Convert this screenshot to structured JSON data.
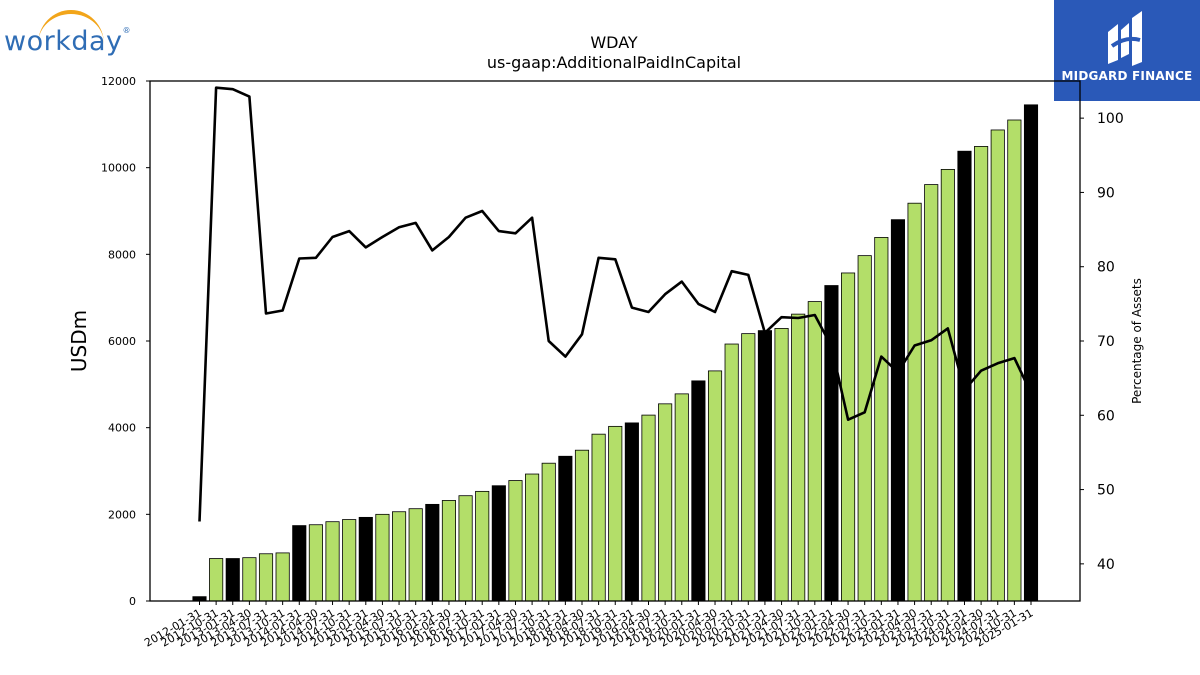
{
  "logos": {
    "left_text": "workday",
    "left_mark": "®",
    "right_text": "MIDGARD FINANCE",
    "right_icon": "midgard-mark-icon"
  },
  "colors": {
    "bar_light": "#b3de69",
    "bar_dark": "#000000",
    "line": "#000000",
    "right_logo_bg": "#2a59b8",
    "left_logo_text": "#2f6db5",
    "left_logo_arc": "#f2a51a"
  },
  "chart_data": {
    "type": "bar",
    "title": "WDAY",
    "subtitle": "us-gaap:AdditionalPaidInCapital",
    "ylabel": "USDm",
    "y2label": "Percentage of Assets",
    "ylim": [
      0,
      12000
    ],
    "y2lim": [
      35,
      105
    ],
    "yticks": [
      0,
      2000,
      4000,
      6000,
      8000,
      10000,
      12000
    ],
    "y2ticks": [
      40,
      50,
      60,
      70,
      80,
      90,
      100
    ],
    "grid": false,
    "categories": [
      "2012-01-31",
      "2012-10-31",
      "2013-01-31",
      "2013-04-30",
      "2013-07-31",
      "2013-10-31",
      "2014-01-31",
      "2014-04-30",
      "2014-07-31",
      "2014-10-31",
      "2015-01-31",
      "2015-04-30",
      "2015-07-31",
      "2015-10-31",
      "2016-01-31",
      "2016-04-30",
      "2016-07-31",
      "2016-10-31",
      "2017-01-31",
      "2017-04-30",
      "2017-07-31",
      "2017-10-31",
      "2018-01-31",
      "2018-04-30",
      "2018-07-31",
      "2018-10-31",
      "2019-01-31",
      "2019-04-30",
      "2019-07-31",
      "2019-10-31",
      "2020-01-31",
      "2020-04-30",
      "2020-07-31",
      "2020-10-31",
      "2021-01-31",
      "2021-04-30",
      "2021-07-31",
      "2021-10-31",
      "2022-01-31",
      "2022-04-30",
      "2022-07-31",
      "2022-10-31",
      "2023-01-31",
      "2023-04-30",
      "2023-07-31",
      "2023-10-31",
      "2024-01-31",
      "2024-04-30",
      "2024-07-31",
      "2024-10-31",
      "2025-01-31"
    ],
    "bar_values": [
      100,
      980,
      980,
      1000,
      1090,
      1110,
      1740,
      1760,
      1830,
      1880,
      1930,
      2000,
      2060,
      2130,
      2230,
      2320,
      2430,
      2530,
      2660,
      2780,
      2930,
      3180,
      3340,
      3480,
      3850,
      4030,
      4110,
      4290,
      4550,
      4780,
      5080,
      5310,
      5930,
      6170,
      6240,
      6290,
      6620,
      6910,
      7280,
      7570,
      7970,
      8390,
      8800,
      9180,
      9610,
      9960,
      10380,
      10490,
      10870,
      11100,
      11450
    ],
    "bar_highlight": [
      true,
      false,
      true,
      false,
      false,
      false,
      true,
      false,
      false,
      false,
      true,
      false,
      false,
      false,
      true,
      false,
      false,
      false,
      true,
      false,
      false,
      false,
      true,
      false,
      false,
      false,
      true,
      false,
      false,
      false,
      true,
      false,
      false,
      false,
      true,
      false,
      false,
      false,
      true,
      false,
      false,
      false,
      true,
      false,
      false,
      false,
      true,
      false,
      false,
      false,
      true
    ],
    "line_values": [
      45.7,
      104.1,
      103.9,
      102.9,
      73.7,
      74.1,
      81.1,
      81.2,
      84.0,
      84.8,
      82.6,
      84.0,
      85.3,
      85.9,
      82.2,
      84.0,
      86.6,
      87.5,
      84.8,
      84.5,
      86.6,
      70.0,
      67.9,
      70.9,
      81.2,
      81.0,
      74.5,
      73.9,
      76.3,
      78.0,
      75.0,
      73.9,
      79.4,
      78.9,
      71.1,
      73.2,
      73.1,
      73.5,
      69.3,
      59.4,
      60.4,
      67.9,
      65.8,
      69.4,
      70.1,
      71.7,
      63.4,
      66.0,
      67.0,
      67.7,
      63.0
    ]
  }
}
